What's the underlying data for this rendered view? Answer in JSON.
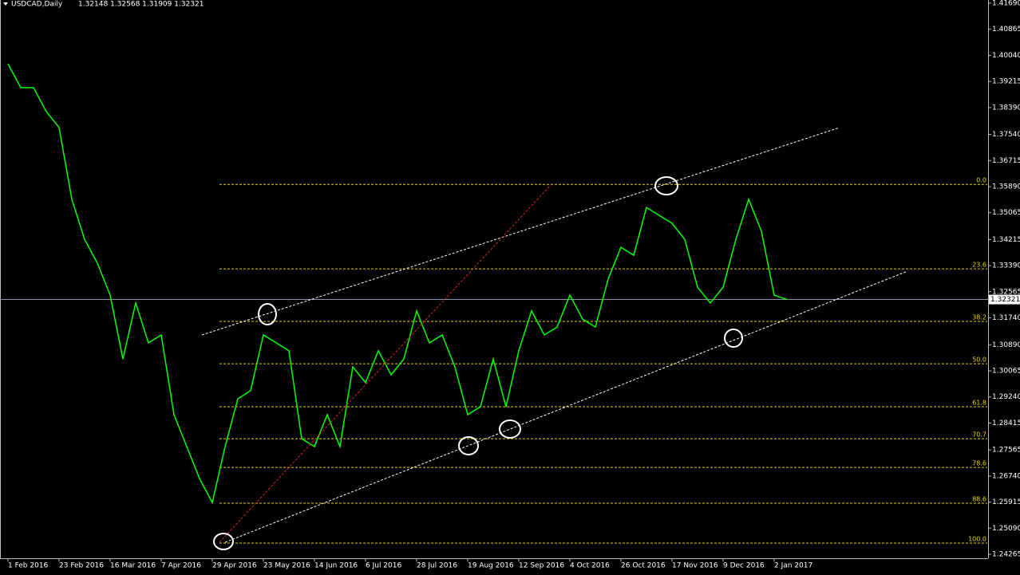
{
  "chart_data": {
    "type": "line",
    "title": "USDCAD,Daily",
    "subtitle": "1.32148 1.32568 1.31909 1.32321",
    "categories": [
      "1 Feb 2016",
      null,
      null,
      null,
      "23 Feb 2016",
      null,
      null,
      null,
      "16 Mar 2016",
      null,
      null,
      null,
      "7 Apr 2016",
      null,
      null,
      null,
      "29 Apr 2016",
      null,
      null,
      null,
      "23 May 2016",
      null,
      null,
      null,
      "14 Jun 2016",
      null,
      null,
      null,
      "6 Jul 2016",
      null,
      null,
      null,
      "28 Jul 2016",
      null,
      null,
      null,
      "19 Aug 2016",
      null,
      null,
      null,
      "12 Sep 2016",
      null,
      null,
      null,
      "4 Oct 2016",
      null,
      null,
      null,
      "26 Oct 2016",
      null,
      null,
      null,
      "17 Nov 2016",
      null,
      null,
      null,
      "9 Dec 2016",
      null,
      null,
      null,
      "2 Jan 2017",
      null
    ],
    "values": [
      1.3977,
      1.3902,
      1.3902,
      1.3826,
      1.3776,
      1.3549,
      1.3422,
      1.3347,
      1.3246,
      1.3044,
      1.3221,
      1.3095,
      1.312,
      1.2868,
      1.2767,
      1.2666,
      1.259,
      1.2767,
      1.2918,
      1.2944,
      1.312,
      1.3095,
      1.307,
      1.2792,
      1.2767,
      1.2868,
      1.2767,
      1.3019,
      1.2969,
      1.307,
      1.2994,
      1.3044,
      1.3196,
      1.3095,
      1.312,
      1.3019,
      1.2868,
      1.2893,
      1.3044,
      1.2893,
      1.307,
      1.3196,
      1.312,
      1.3145,
      1.3246,
      1.317,
      1.3145,
      1.3297,
      1.3397,
      1.3372,
      1.3523,
      1.3498,
      1.3473,
      1.3422,
      1.3271,
      1.3221,
      1.3271,
      1.3422,
      1.3549,
      1.3448,
      1.3246,
      1.32321
    ],
    "color": "#00ff00",
    "ylim": [
      1.2414,
      1.4179
    ],
    "yticks": [
      {
        "value": 1.4169,
        "label": "1.41690"
      },
      {
        "value": 1.40865,
        "label": "1.40865"
      },
      {
        "value": 1.4004,
        "label": "1.40040"
      },
      {
        "value": 1.39215,
        "label": "1.39215"
      },
      {
        "value": 1.3839,
        "label": "1.38390"
      },
      {
        "value": 1.3754,
        "label": "1.37540"
      },
      {
        "value": 1.36715,
        "label": "1.36715"
      },
      {
        "value": 1.3589,
        "label": "1.35890"
      },
      {
        "value": 1.35065,
        "label": "1.35065"
      },
      {
        "value": 1.34215,
        "label": "1.34215"
      },
      {
        "value": 1.3339,
        "label": "1.33390"
      },
      {
        "value": 1.32565,
        "label": "1.32565"
      },
      {
        "value": 1.3174,
        "label": "1.31740"
      },
      {
        "value": 1.3089,
        "label": "1.30890"
      },
      {
        "value": 1.30065,
        "label": "1.30065"
      },
      {
        "value": 1.2924,
        "label": "1.29240"
      },
      {
        "value": 1.28415,
        "label": "1.28415"
      },
      {
        "value": 1.27565,
        "label": "1.27565"
      },
      {
        "value": 1.2674,
        "label": "1.26740"
      },
      {
        "value": 1.25915,
        "label": "1.25915"
      },
      {
        "value": 1.2509,
        "label": "1.25090"
      },
      {
        "value": 1.24265,
        "label": "1.24265"
      }
    ],
    "current_price": {
      "value": 1.32321,
      "label": "1.32321"
    },
    "fib_levels": [
      {
        "label": "0.0",
        "price": 1.3596
      },
      {
        "label": "23.6",
        "price": 1.3329
      },
      {
        "label": "38.2",
        "price": 1.3163
      },
      {
        "label": "50.0",
        "price": 1.3029
      },
      {
        "label": "61.8",
        "price": 1.2893
      },
      {
        "label": "70.7",
        "price": 1.2792
      },
      {
        "label": "78.6",
        "price": 1.2701
      },
      {
        "label": "88.6",
        "price": 1.2588
      },
      {
        "label": "100.0",
        "price": 1.2462
      }
    ]
  }
}
